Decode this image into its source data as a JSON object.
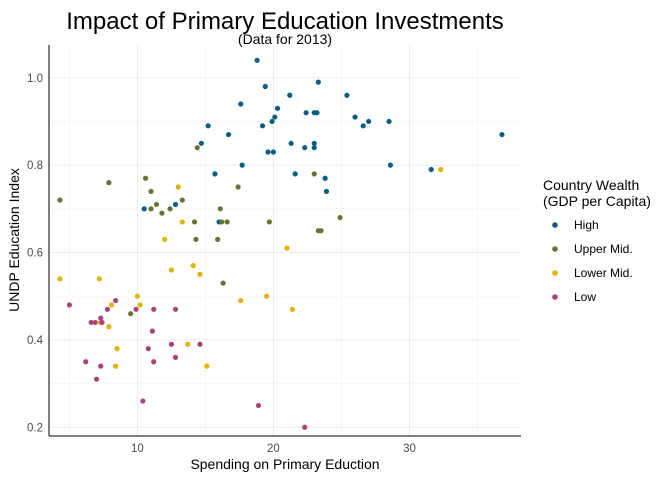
{
  "chart_data": {
    "type": "scatter",
    "title": "Impact of Primary Education Investments",
    "subtitle": "(Data for 2013)",
    "xlabel": "Spending on Primary Eduction",
    "ylabel": "UNDP Education Index",
    "xlim": [
      3.5,
      38.2
    ],
    "ylim": [
      0.18,
      1.075
    ],
    "x_ticks": [
      10,
      20,
      30
    ],
    "y_ticks": [
      0.2,
      0.4,
      0.6,
      0.8,
      1.0
    ],
    "y_tick_labels": [
      "0.2",
      "0.4",
      "0.6",
      "0.8",
      "1.0"
    ],
    "grid": true,
    "legend": {
      "title_line1": "Country Wealth",
      "title_line2": "(GDP per Capita)",
      "position": "right"
    },
    "series": [
      {
        "name": "High",
        "color": "#0b5d82",
        "points": [
          [
            18.8,
            1.04
          ],
          [
            19.4,
            0.98
          ],
          [
            21.2,
            0.96
          ],
          [
            23.3,
            0.99
          ],
          [
            20.3,
            0.93
          ],
          [
            22.4,
            0.92
          ],
          [
            23.0,
            0.92
          ],
          [
            23.2,
            0.92
          ],
          [
            25.4,
            0.96
          ],
          [
            26.0,
            0.91
          ],
          [
            26.6,
            0.89
          ],
          [
            27.0,
            0.9
          ],
          [
            28.5,
            0.9
          ],
          [
            17.6,
            0.94
          ],
          [
            15.2,
            0.89
          ],
          [
            19.2,
            0.89
          ],
          [
            19.9,
            0.9
          ],
          [
            20.1,
            0.91
          ],
          [
            19.6,
            0.83
          ],
          [
            20.0,
            0.83
          ],
          [
            21.3,
            0.85
          ],
          [
            22.3,
            0.84
          ],
          [
            23.0,
            0.84
          ],
          [
            23.0,
            0.85
          ],
          [
            16.7,
            0.87
          ],
          [
            14.7,
            0.85
          ],
          [
            17.7,
            0.8
          ],
          [
            21.6,
            0.78
          ],
          [
            23.8,
            0.77
          ],
          [
            23.9,
            0.74
          ],
          [
            28.6,
            0.8
          ],
          [
            15.7,
            0.78
          ],
          [
            31.6,
            0.79
          ],
          [
            36.8,
            0.87
          ],
          [
            16.0,
            0.67
          ],
          [
            12.8,
            0.71
          ],
          [
            10.5,
            0.7
          ]
        ]
      },
      {
        "name": "Upper Mid.",
        "color": "#6b7235",
        "points": [
          [
            4.3,
            0.72
          ],
          [
            7.9,
            0.76
          ],
          [
            10.6,
            0.77
          ],
          [
            11.0,
            0.74
          ],
          [
            11.4,
            0.71
          ],
          [
            11.0,
            0.7
          ],
          [
            11.8,
            0.69
          ],
          [
            12.4,
            0.7
          ],
          [
            13.3,
            0.72
          ],
          [
            14.4,
            0.84
          ],
          [
            14.2,
            0.67
          ],
          [
            14.3,
            0.63
          ],
          [
            16.1,
            0.7
          ],
          [
            16.2,
            0.67
          ],
          [
            16.6,
            0.67
          ],
          [
            17.4,
            0.75
          ],
          [
            15.9,
            0.63
          ],
          [
            16.3,
            0.53
          ],
          [
            19.7,
            0.67
          ],
          [
            23.0,
            0.78
          ],
          [
            23.3,
            0.65
          ],
          [
            23.5,
            0.65
          ],
          [
            24.9,
            0.68
          ],
          [
            9.5,
            0.46
          ]
        ]
      },
      {
        "name": "Lower Mid.",
        "color": "#e0b400",
        "points": [
          [
            4.3,
            0.54
          ],
          [
            7.2,
            0.54
          ],
          [
            13.0,
            0.75
          ],
          [
            13.3,
            0.67
          ],
          [
            12.0,
            0.63
          ],
          [
            12.5,
            0.56
          ],
          [
            14.1,
            0.57
          ],
          [
            14.6,
            0.55
          ],
          [
            17.6,
            0.49
          ],
          [
            19.5,
            0.5
          ],
          [
            21.0,
            0.61
          ],
          [
            21.4,
            0.47
          ],
          [
            10.0,
            0.5
          ],
          [
            10.2,
            0.48
          ],
          [
            8.1,
            0.48
          ],
          [
            7.3,
            0.44
          ],
          [
            7.9,
            0.43
          ],
          [
            8.5,
            0.38
          ],
          [
            8.4,
            0.34
          ],
          [
            13.7,
            0.39
          ],
          [
            15.1,
            0.34
          ],
          [
            32.3,
            0.79
          ]
        ]
      },
      {
        "name": "Low",
        "color": "#a84478",
        "points": [
          [
            5.0,
            0.48
          ],
          [
            6.6,
            0.44
          ],
          [
            6.9,
            0.44
          ],
          [
            7.3,
            0.45
          ],
          [
            7.4,
            0.44
          ],
          [
            7.8,
            0.47
          ],
          [
            8.4,
            0.49
          ],
          [
            9.9,
            0.47
          ],
          [
            11.2,
            0.47
          ],
          [
            12.8,
            0.47
          ],
          [
            11.1,
            0.42
          ],
          [
            10.8,
            0.38
          ],
          [
            12.5,
            0.39
          ],
          [
            14.6,
            0.39
          ],
          [
            11.2,
            0.35
          ],
          [
            12.8,
            0.36
          ],
          [
            6.2,
            0.35
          ],
          [
            7.3,
            0.34
          ],
          [
            7.0,
            0.31
          ],
          [
            10.4,
            0.26
          ],
          [
            18.9,
            0.25
          ],
          [
            22.3,
            0.2
          ]
        ]
      }
    ]
  }
}
